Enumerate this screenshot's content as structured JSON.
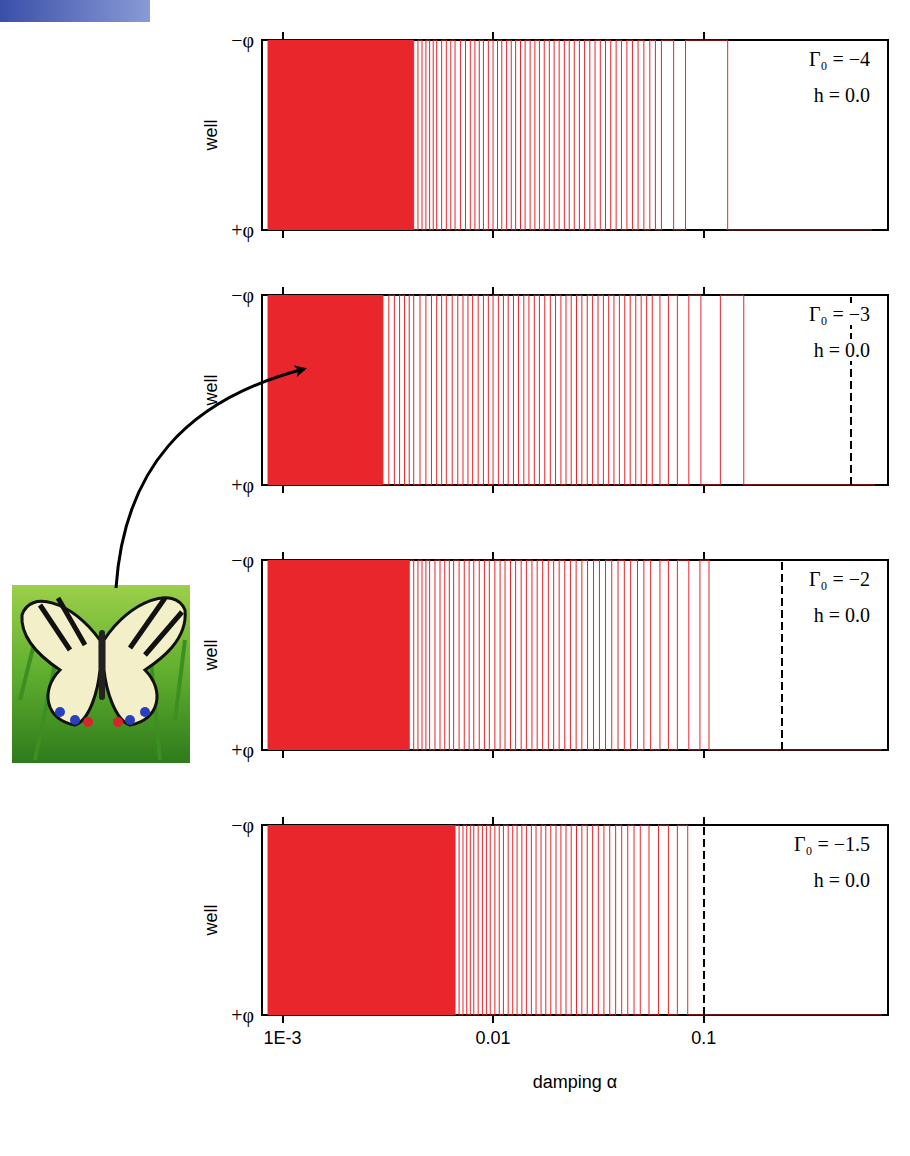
{
  "chart_data": [
    {
      "type": "line",
      "annotations": [
        "Γ₀ = −4",
        "h = 0.0"
      ],
      "y_label": "well",
      "y_categories": [
        "+φ",
        "−φ"
      ],
      "xlim": [
        0.0008,
        0.75
      ],
      "xticks": [
        {
          "value": 0.001,
          "label": "1E-3"
        },
        0.01,
        0.1
      ],
      "log": "x",
      "grid": false,
      "tick_labels": "y",
      "color": "#e8262b",
      "line_style": "solid",
      "dense_ranges": [
        [
          0.00085,
          0.0042
        ]
      ],
      "x": [
        0.0042,
        0.0044,
        0.0046,
        0.0048,
        0.005,
        0.0052,
        0.0054,
        0.0057,
        0.006,
        0.0063,
        0.0066,
        0.007,
        0.0074,
        0.0078,
        0.0082,
        0.0086,
        0.009,
        0.0095,
        0.01,
        0.0105,
        0.011,
        0.0116,
        0.0122,
        0.0128,
        0.0135,
        0.0142,
        0.015,
        0.0158,
        0.0166,
        0.0175,
        0.0185,
        0.0195,
        0.0206,
        0.0218,
        0.023,
        0.0243,
        0.0257,
        0.0272,
        0.0288,
        0.0305,
        0.0323,
        0.0342,
        0.0362,
        0.0384,
        0.0407,
        0.0432,
        0.0459,
        0.0488,
        0.052,
        0.0555,
        0.059,
        0.063,
        0.072,
        0.082,
        0.13,
        0.19,
        0.63
      ],
      "values": [
        "−φ",
        "+φ",
        "−φ",
        "+φ",
        "−φ",
        "+φ",
        "−φ",
        "+φ",
        "−φ",
        "+φ",
        "−φ",
        "+φ",
        "−φ",
        "+φ",
        "−φ",
        "+φ",
        "−φ",
        "+φ",
        "−φ",
        "+φ",
        "−φ",
        "+φ",
        "−φ",
        "+φ",
        "−φ",
        "+φ",
        "−φ",
        "+φ",
        "−φ",
        "+φ",
        "−φ",
        "+φ",
        "−φ",
        "+φ",
        "−φ",
        "+φ",
        "−φ",
        "+φ",
        "−φ",
        "+φ",
        "−φ",
        "+φ",
        "−φ",
        "+φ",
        "−φ",
        "+φ",
        "−φ",
        "+φ",
        "−φ",
        "+φ",
        "−φ",
        "+φ",
        "−φ",
        "+φ",
        "−φ",
        "+φ",
        "+φ"
      ]
    },
    {
      "type": "line",
      "annotations": [
        "Γ₀ = −3",
        "h = 0.0"
      ],
      "y_label": "well",
      "y_categories": [
        "+φ",
        "−φ"
      ],
      "xlim": [
        0.0008,
        0.75
      ],
      "xticks": [
        {
          "value": 0.001,
          "label": "1E-3"
        },
        0.01,
        0.1
      ],
      "log": "x",
      "grid": false,
      "tick_labels": "y",
      "color": "#e8262b",
      "line_style": "solid",
      "threshold": 0.5,
      "dense_ranges": [
        [
          0.00085,
          0.003
        ]
      ],
      "x": [
        0.003,
        0.0032,
        0.0034,
        0.0036,
        0.0038,
        0.004,
        0.0042,
        0.0045,
        0.0048,
        0.0051,
        0.0054,
        0.0057,
        0.006,
        0.0064,
        0.0068,
        0.0072,
        0.0076,
        0.008,
        0.0085,
        0.009,
        0.0095,
        0.01,
        0.0106,
        0.0112,
        0.0118,
        0.0125,
        0.0132,
        0.014,
        0.0148,
        0.0157,
        0.0166,
        0.0176,
        0.0187,
        0.0198,
        0.021,
        0.0222,
        0.0235,
        0.0249,
        0.0264,
        0.028,
        0.0297,
        0.0315,
        0.0334,
        0.0354,
        0.0375,
        0.0398,
        0.0422,
        0.0448,
        0.0476,
        0.0505,
        0.0536,
        0.057,
        0.062,
        0.068,
        0.075,
        0.085,
        0.097,
        0.12,
        0.155,
        0.21,
        0.65
      ],
      "values": [
        "−φ",
        "+φ",
        "−φ",
        "+φ",
        "−φ",
        "+φ",
        "−φ",
        "+φ",
        "−φ",
        "+φ",
        "−φ",
        "+φ",
        "−φ",
        "+φ",
        "−φ",
        "+φ",
        "−φ",
        "+φ",
        "−φ",
        "+φ",
        "−φ",
        "+φ",
        "−φ",
        "+φ",
        "−φ",
        "+φ",
        "−φ",
        "+φ",
        "−φ",
        "+φ",
        "−φ",
        "+φ",
        "−φ",
        "+φ",
        "−φ",
        "+φ",
        "−φ",
        "+φ",
        "−φ",
        "+φ",
        "−φ",
        "+φ",
        "−φ",
        "+φ",
        "−φ",
        "+φ",
        "−φ",
        "+φ",
        "−φ",
        "+φ",
        "−φ",
        "+φ",
        "−φ",
        "+φ",
        "−φ",
        "+φ",
        "−φ",
        "+φ",
        "−φ",
        "+φ",
        "+φ"
      ]
    },
    {
      "type": "line",
      "annotations": [
        "Γ₀ = −2",
        "h = 0.0"
      ],
      "y_label": "well",
      "y_categories": [
        "+φ",
        "−φ"
      ],
      "xlim": [
        0.0008,
        0.75
      ],
      "xticks": [
        {
          "value": 0.001,
          "label": "1E-3"
        },
        0.01,
        0.1
      ],
      "log": "x",
      "grid": false,
      "tick_labels": "y",
      "color": "#e8262b",
      "line_style": "solid",
      "threshold": 0.235,
      "dense_ranges": [
        [
          0.00085,
          0.004
        ]
      ],
      "x": [
        0.004,
        0.0042,
        0.0044,
        0.0046,
        0.0048,
        0.005,
        0.0053,
        0.0056,
        0.0059,
        0.0062,
        0.0065,
        0.0069,
        0.0073,
        0.0077,
        0.0081,
        0.0086,
        0.0091,
        0.0096,
        0.0102,
        0.0108,
        0.0114,
        0.0121,
        0.0128,
        0.0136,
        0.0144,
        0.0153,
        0.0162,
        0.0172,
        0.0183,
        0.0194,
        0.0206,
        0.0219,
        0.0233,
        0.0248,
        0.0264,
        0.0281,
        0.03,
        0.032,
        0.0342,
        0.0366,
        0.0392,
        0.042,
        0.045,
        0.0485,
        0.052,
        0.056,
        0.062,
        0.068,
        0.075,
        0.085,
        0.096,
        0.106,
        0.116,
        0.7
      ],
      "values": [
        "+φ",
        "−φ",
        "+φ",
        "−φ",
        "+φ",
        "−φ",
        "+φ",
        "−φ",
        "+φ",
        "−φ",
        "+φ",
        "−φ",
        "+φ",
        "−φ",
        "+φ",
        "−φ",
        "+φ",
        "−φ",
        "+φ",
        "−φ",
        "+φ",
        "−φ",
        "+φ",
        "−φ",
        "+φ",
        "−φ",
        "+φ",
        "−φ",
        "+φ",
        "−φ",
        "+φ",
        "−φ",
        "+φ",
        "−φ",
        "+φ",
        "−φ",
        "+φ",
        "−φ",
        "+φ",
        "−φ",
        "+φ",
        "−φ",
        "+φ",
        "−φ",
        "+φ",
        "−φ",
        "+φ",
        "−φ",
        "+φ",
        "−φ",
        "+φ",
        "−φ",
        "+φ",
        "+φ"
      ]
    },
    {
      "type": "line",
      "annotations": [
        "Γ₀ = −1.5",
        "h = 0.0"
      ],
      "y_label": "well",
      "y_categories": [
        "+φ",
        "−φ"
      ],
      "x_label": "damping α",
      "xlim": [
        0.0008,
        0.75
      ],
      "xticks": [
        {
          "value": 0.001,
          "label": "1E-3"
        },
        0.01,
        0.1
      ],
      "log": "x",
      "grid": false,
      "tick_labels": true,
      "color": "#e8262b",
      "line_style": "solid",
      "threshold": 0.1,
      "dense_ranges": [
        [
          0.00085,
          0.0066
        ]
      ],
      "x": [
        0.0066,
        0.0069,
        0.0072,
        0.0075,
        0.0078,
        0.0081,
        0.0085,
        0.0089,
        0.0093,
        0.0097,
        0.0102,
        0.0107,
        0.0112,
        0.0118,
        0.0124,
        0.013,
        0.0137,
        0.0144,
        0.0152,
        0.016,
        0.0169,
        0.0178,
        0.0188,
        0.0199,
        0.021,
        0.0222,
        0.0235,
        0.0249,
        0.0264,
        0.028,
        0.0297,
        0.0316,
        0.0336,
        0.0358,
        0.0382,
        0.0408,
        0.0436,
        0.0467,
        0.05,
        0.055,
        0.061,
        0.068,
        0.075,
        0.084,
        0.093,
        0.7
      ],
      "values": [
        "+φ",
        "−φ",
        "+φ",
        "−φ",
        "+φ",
        "−φ",
        "+φ",
        "−φ",
        "+φ",
        "−φ",
        "+φ",
        "−φ",
        "+φ",
        "−φ",
        "+φ",
        "−φ",
        "+φ",
        "−φ",
        "+φ",
        "−φ",
        "+φ",
        "−φ",
        "+φ",
        "−φ",
        "+φ",
        "−φ",
        "+φ",
        "−φ",
        "+φ",
        "−φ",
        "+φ",
        "−φ",
        "+φ",
        "−φ",
        "+φ",
        "−φ",
        "+φ",
        "−φ",
        "+φ",
        "−φ",
        "+φ",
        "−φ",
        "+φ",
        "−φ",
        "+φ",
        "+φ"
      ]
    }
  ]
}
